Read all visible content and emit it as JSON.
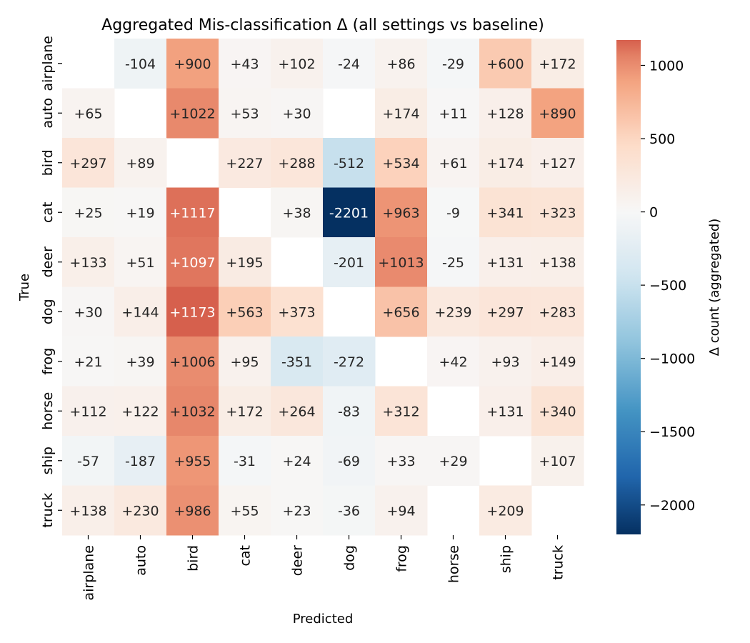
{
  "chart_data": {
    "type": "heatmap",
    "title": "Aggregated Mis-classification Δ  (all settings vs baseline)",
    "xlabel": "Predicted",
    "ylabel": "True",
    "x_categories": [
      "airplane",
      "auto",
      "bird",
      "cat",
      "deer",
      "dog",
      "frog",
      "horse",
      "ship",
      "truck"
    ],
    "y_categories": [
      "airplane",
      "auto",
      "bird",
      "cat",
      "deer",
      "dog",
      "frog",
      "horse",
      "ship",
      "truck"
    ],
    "values": [
      [
        null,
        -104,
        900,
        43,
        102,
        -24,
        86,
        -29,
        600,
        172
      ],
      [
        65,
        null,
        1022,
        53,
        30,
        null,
        174,
        11,
        128,
        890
      ],
      [
        297,
        89,
        null,
        227,
        288,
        -512,
        534,
        61,
        174,
        127
      ],
      [
        25,
        19,
        1117,
        null,
        38,
        -2201,
        963,
        -9,
        341,
        323
      ],
      [
        133,
        51,
        1097,
        195,
        null,
        -201,
        1013,
        -25,
        131,
        138
      ],
      [
        30,
        144,
        1173,
        563,
        373,
        null,
        656,
        239,
        297,
        283
      ],
      [
        21,
        39,
        1006,
        95,
        -351,
        -272,
        null,
        42,
        93,
        149
      ],
      [
        112,
        122,
        1032,
        172,
        264,
        -83,
        312,
        null,
        131,
        340
      ],
      [
        -57,
        -187,
        955,
        -31,
        24,
        -69,
        33,
        29,
        null,
        107
      ],
      [
        138,
        230,
        986,
        55,
        23,
        -36,
        94,
        null,
        209,
        null
      ]
    ],
    "cell_labels": [
      [
        "",
        "-104",
        "+900",
        "+43",
        "+102",
        "-24",
        "+86",
        "-29",
        "+600",
        "+172"
      ],
      [
        "+65",
        "",
        "+1022",
        "+53",
        "+30",
        "",
        "+174",
        "+11",
        "+128",
        "+890"
      ],
      [
        "+297",
        "+89",
        "",
        "+227",
        "+288",
        "-512",
        "+534",
        "+61",
        "+174",
        "+127"
      ],
      [
        "+25",
        "+19",
        "+1117",
        "",
        "+38",
        "-2201",
        "+963",
        "-9",
        "+341",
        "+323"
      ],
      [
        "+133",
        "+51",
        "+1097",
        "+195",
        "",
        "-201",
        "+1013",
        "-25",
        "+131",
        "+138"
      ],
      [
        "+30",
        "+144",
        "+1173",
        "+563",
        "+373",
        "",
        "+656",
        "+239",
        "+297",
        "+283"
      ],
      [
        "+21",
        "+39",
        "+1006",
        "+95",
        "-351",
        "-272",
        "",
        "+42",
        "+93",
        "+149"
      ],
      [
        "+112",
        "+122",
        "+1032",
        "+172",
        "+264",
        "-83",
        "+312",
        "",
        "+131",
        "+340"
      ],
      [
        "-57",
        "-187",
        "+955",
        "-31",
        "+24",
        "-69",
        "+33",
        "+29",
        "",
        "+107"
      ],
      [
        "+138",
        "+230",
        "+986",
        "+55",
        "+23",
        "-36",
        "+94",
        "",
        "+209",
        ""
      ]
    ],
    "colorbar": {
      "label": "Δ count (aggregated)",
      "vmin": -2201,
      "vmax": 1173,
      "ticks": [
        1000,
        500,
        0,
        -500,
        -1000,
        -1500,
        -2000
      ],
      "tick_labels": [
        "1000",
        "500",
        "0",
        "−500",
        "−1000",
        "−1500",
        "−2000"
      ],
      "colormap": "RdBu_r (diverging, centered at 0)",
      "colors": {
        "neg_max": "#053061",
        "neg_strong": "#2166ac",
        "neg_mid": "#4393c3",
        "neg_light": "#92c5de",
        "neg_pale": "#d1e5f0",
        "center": "#f7f7f7",
        "pos_pale": "#fddbc7",
        "pos_light": "#f4a582",
        "pos_mid": "#e58267",
        "pos_strong": "#d6604d"
      }
    }
  }
}
